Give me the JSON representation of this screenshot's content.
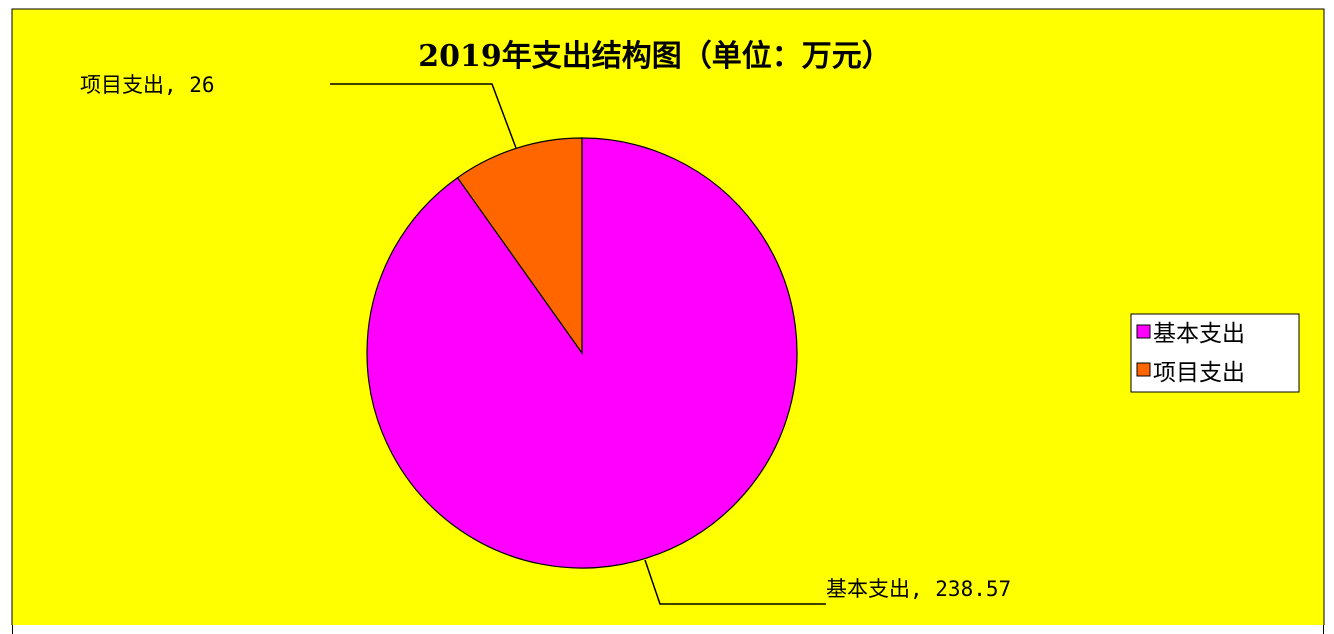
{
  "chart_data": {
    "type": "pie",
    "title": "2019年支出结构图（单位：万元）",
    "slices": [
      {
        "name": "基本支出",
        "value": 238.57,
        "color": "#FF00FF",
        "label": "基本支出, 238.57"
      },
      {
        "name": "项目支出",
        "value": 26,
        "color": "#FF6600",
        "label": "项目支出, 26"
      }
    ],
    "legend": {
      "placement": "right",
      "items": [
        "基本支出",
        "项目支出"
      ]
    },
    "background_color": "#FFFF00",
    "start_angle": "12 o'clock",
    "direction": "clockwise"
  }
}
